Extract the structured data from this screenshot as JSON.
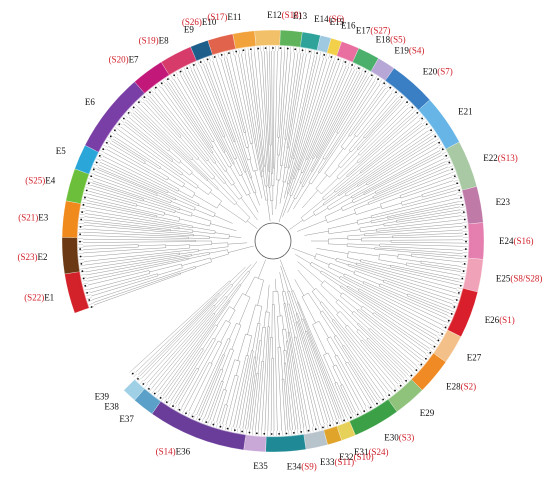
{
  "colors": {
    "ring_outer_stroke": "#ffffff",
    "branch_default": "#6b6b6b",
    "dot": "#111111",
    "subgroup_text": "#d0202a"
  },
  "clades": [
    {
      "id": "E1",
      "sub": "(S22)",
      "color": "#d3222a"
    },
    {
      "id": "E2",
      "sub": "(S23)",
      "color": "#6b3a14"
    },
    {
      "id": "E3",
      "sub": "(S21)",
      "color": "#f08a1c"
    },
    {
      "id": "E4",
      "sub": "(S25)",
      "color": "#6cbf3a"
    },
    {
      "id": "E5",
      "sub": "",
      "color": "#2aa6d9"
    },
    {
      "id": "E6",
      "sub": "",
      "color": "#7a3fa6"
    },
    {
      "id": "E7",
      "sub": "(S20)",
      "color": "#c2187a"
    },
    {
      "id": "E8",
      "sub": "(S19)",
      "color": "#d63b6a"
    },
    {
      "id": "E9",
      "sub": "",
      "color": "#1e5e8a"
    },
    {
      "id": "E10",
      "sub": "(S26)",
      "color": "#e2634c"
    },
    {
      "id": "E11",
      "sub": "(S17)",
      "color": "#f2a23b"
    },
    {
      "id": "E12",
      "sub": "(S18)",
      "color": "#f3c06a"
    },
    {
      "id": "E13",
      "sub": "",
      "color": "#5fb35a"
    },
    {
      "id": "E14",
      "sub": "(S6)",
      "color": "#2fa39a"
    },
    {
      "id": "E15",
      "sub": "",
      "color": "#9ec9e0"
    },
    {
      "id": "E16",
      "sub": "",
      "color": "#f2d04a"
    },
    {
      "id": "E17",
      "sub": "(S27)",
      "color": "#e86fa0"
    },
    {
      "id": "E18",
      "sub": "(S5)",
      "color": "#4bb06b"
    },
    {
      "id": "E19",
      "sub": "(S4)",
      "color": "#b7a7d6"
    },
    {
      "id": "E20",
      "sub": "(S7)",
      "color": "#3a7fc3"
    },
    {
      "id": "E21",
      "sub": "",
      "color": "#66b5e6"
    },
    {
      "id": "E22",
      "sub": "(S13)",
      "color": "#a9c9a4"
    },
    {
      "id": "E23",
      "sub": "",
      "color": "#c07aa8"
    },
    {
      "id": "E24",
      "sub": "(S16)",
      "color": "#e57fb0"
    },
    {
      "id": "E25",
      "sub": "(S8/S28)",
      "color": "#f0a3b8"
    },
    {
      "id": "E26",
      "sub": "(S1)",
      "color": "#d91f2b"
    },
    {
      "id": "E27",
      "sub": "",
      "color": "#f4c08a"
    },
    {
      "id": "E28",
      "sub": "(S2)",
      "color": "#f08a24"
    },
    {
      "id": "E29",
      "sub": "",
      "color": "#8fc27a"
    },
    {
      "id": "E30",
      "sub": "(S3)",
      "color": "#3ca046"
    },
    {
      "id": "E31",
      "sub": "(S24)",
      "color": "#e6d15a"
    },
    {
      "id": "E32",
      "sub": "(S10)",
      "color": "#e0a42a"
    },
    {
      "id": "E33",
      "sub": "(S11)",
      "color": "#b8c4cc"
    },
    {
      "id": "E34",
      "sub": "(S9)",
      "color": "#1f8a96"
    },
    {
      "id": "E35",
      "sub": "",
      "color": "#c9a8d8"
    },
    {
      "id": "E36",
      "sub": "(S14)",
      "color": "#6a3d9a"
    },
    {
      "id": "E37",
      "sub": "",
      "color": "#5aa0c8"
    },
    {
      "id": "E38",
      "sub": "",
      "color": "#9fd0e6"
    },
    {
      "id": "E39",
      "sub": "",
      "color": "#ffffff"
    }
  ]
}
